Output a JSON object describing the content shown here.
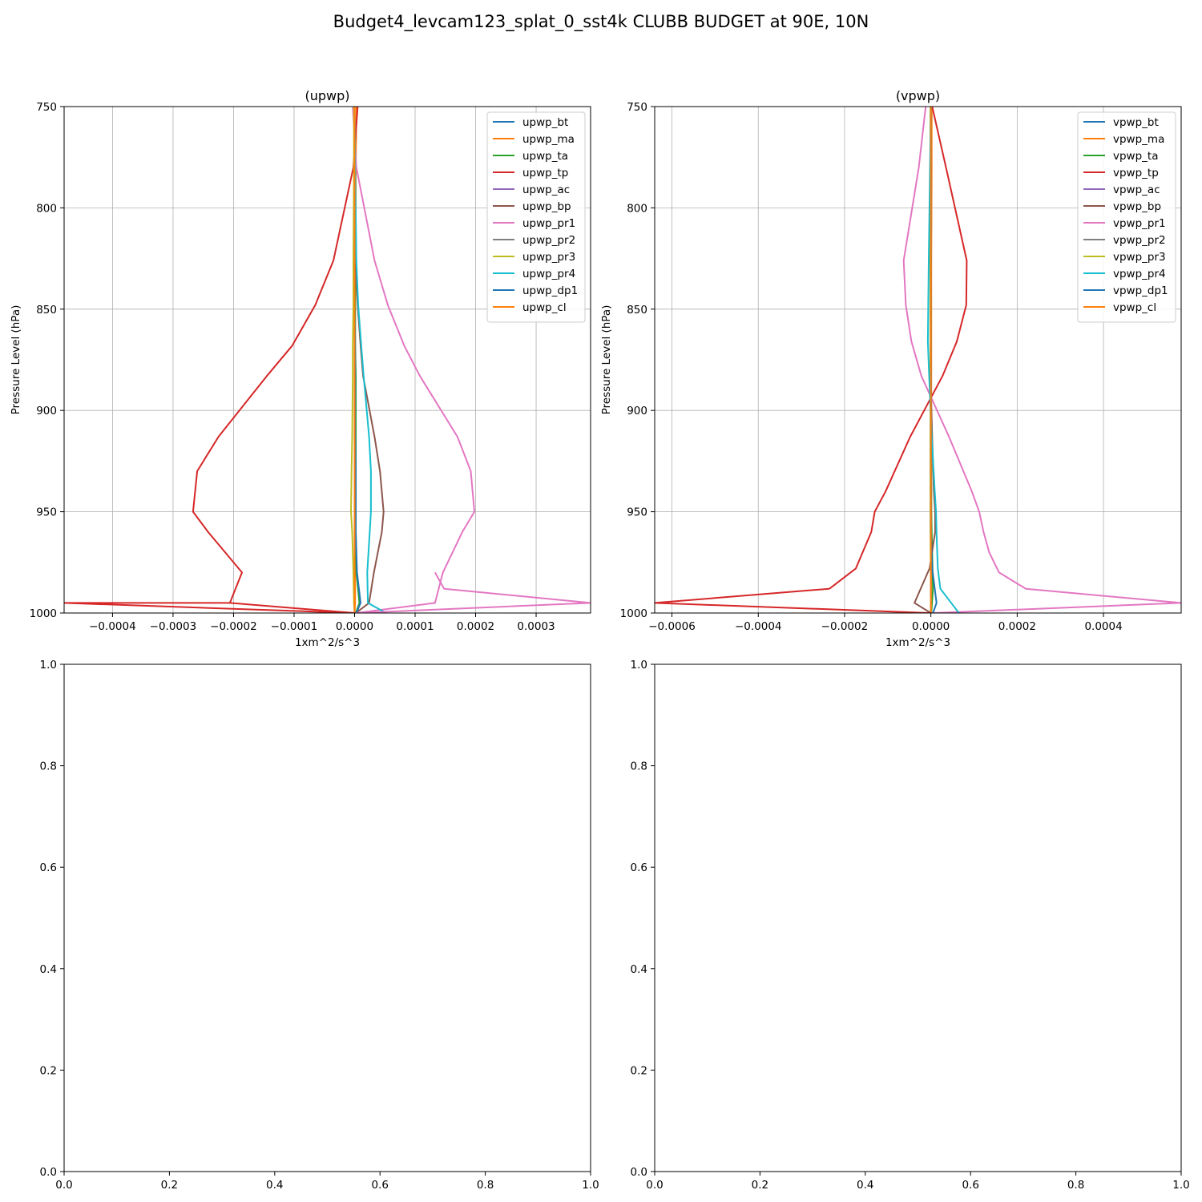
{
  "figure": {
    "suptitle": "Budget4_levcam123_splat_0_sst4k CLUBB BUDGET at 90E, 10N"
  },
  "chart_data": [
    {
      "type": "line",
      "title": "(upwp)",
      "xlabel": "1xm^2/s^3",
      "ylabel": "Pressure Level (hPa)",
      "xlim": [
        -0.00048,
        0.00039
      ],
      "ylim": [
        1000,
        750
      ],
      "y_inverted": true,
      "grid": true,
      "legend_position": "upper right",
      "xticks": [
        -0.0004,
        -0.0003,
        -0.0002,
        -0.0001,
        0.0,
        0.0001,
        0.0002,
        0.0003
      ],
      "xtick_labels": [
        "−0.0004",
        "−0.0003",
        "−0.0002",
        "−0.0001",
        "0.0000",
        "0.0001",
        "0.0002",
        "0.0003"
      ],
      "yticks": [
        750,
        800,
        850,
        900,
        950,
        1000
      ],
      "ytick_labels": [
        "750",
        "800",
        "850",
        "900",
        "950",
        "1000"
      ],
      "series": [
        {
          "name": "upwp_bt",
          "color": "#1f77b4",
          "x": [
            0,
            0,
            0,
            0,
            0,
            0,
            0,
            0,
            0,
            0,
            0,
            0,
            0
          ],
          "y": [
            750,
            780,
            826,
            848,
            868,
            883,
            913,
            930,
            950,
            960,
            980,
            995,
            1000
          ]
        },
        {
          "name": "upwp_ma",
          "color": "#ff7f0e",
          "x": [
            3e-06,
            2e-06,
            2e-06,
            1e-06,
            1e-06,
            1e-06,
            1e-06,
            1e-06,
            1e-06,
            1e-06,
            1e-06,
            1e-06,
            0
          ],
          "y": [
            750,
            780,
            826,
            848,
            868,
            883,
            913,
            930,
            950,
            960,
            980,
            995,
            1000
          ]
        },
        {
          "name": "upwp_ta",
          "color": "#2ca02c",
          "x": [
            0,
            0,
            0,
            1e-06,
            1e-06,
            2e-06,
            2e-06,
            2e-06,
            2e-06,
            2e-06,
            3e-06,
            8e-06,
            2e-06
          ],
          "y": [
            750,
            780,
            826,
            848,
            868,
            883,
            913,
            930,
            950,
            960,
            980,
            995,
            1000
          ]
        },
        {
          "name": "upwp_tp",
          "color": "#d62728",
          "x": [
            5e-06,
            -2e-06,
            -3.5e-05,
            -6.5e-05,
            -0.000103,
            -0.000145,
            -0.000225,
            -0.00026,
            -0.000267,
            -0.000242,
            -0.000186,
            -0.000206,
            0
          ],
          "y": [
            750,
            780,
            826,
            848,
            868,
            883,
            913,
            930,
            950,
            960,
            980,
            995,
            1000
          ]
        },
        {
          "name": "upwp_ac",
          "color": "#9467bd",
          "x": [
            0,
            0,
            0,
            0,
            0,
            0,
            0,
            0,
            0,
            0,
            0,
            0,
            0
          ],
          "y": [
            750,
            780,
            826,
            848,
            868,
            883,
            913,
            930,
            950,
            960,
            980,
            995,
            1000
          ]
        },
        {
          "name": "upwp_bp",
          "color": "#8c564b",
          "x": [
            0,
            0,
            1e-06,
            5e-06,
            1e-05,
            1.4e-05,
            3.3e-05,
            4.2e-05,
            4.8e-05,
            4.5e-05,
            3.2e-05,
            2.4e-05,
            2e-06
          ],
          "y": [
            750,
            780,
            826,
            848,
            868,
            883,
            913,
            930,
            950,
            960,
            980,
            995,
            1000
          ]
        },
        {
          "name": "upwp_pr1",
          "color": "#e377c2",
          "x": [
            -3e-06,
            3e-06,
            3.3e-05,
            5.5e-05,
            8.2e-05,
            0.000108,
            0.00017,
            0.000192,
            0.000198,
            0.000178,
            0.000146,
            0.000133,
            2e-06
          ],
          "y": [
            750,
            780,
            826,
            848,
            868,
            883,
            913,
            930,
            950,
            960,
            980,
            995,
            1000
          ]
        },
        {
          "name": "upwp_pr2",
          "color": "#7f7f7f",
          "x": [
            0,
            0,
            0,
            0,
            0,
            0,
            0,
            0,
            0,
            0,
            0,
            0,
            0
          ],
          "y": [
            750,
            780,
            826,
            848,
            868,
            883,
            913,
            930,
            950,
            960,
            980,
            995,
            1000
          ]
        },
        {
          "name": "upwp_pr3",
          "color": "#bcbd22",
          "x": [
            -1e-06,
            -1e-06,
            -2e-06,
            -2e-06,
            -3e-06,
            -3e-06,
            -4e-06,
            -5e-06,
            -6e-06,
            -4e-06,
            -2e-06,
            -1e-06,
            0
          ],
          "y": [
            750,
            780,
            826,
            848,
            868,
            883,
            913,
            930,
            950,
            960,
            980,
            995,
            1000
          ]
        },
        {
          "name": "upwp_pr4",
          "color": "#17becf",
          "x": [
            0,
            1e-06,
            3e-06,
            6e-06,
            1.1e-05,
            1.5e-05,
            2.4e-05,
            2.7e-05,
            2.7e-05,
            2.5e-05,
            2.1e-05,
            2.2e-05,
            5.2e-05
          ],
          "y": [
            750,
            780,
            826,
            848,
            868,
            883,
            913,
            930,
            950,
            960,
            980,
            995,
            1000
          ]
        },
        {
          "name": "upwp_dp1",
          "color": "#1f77b4",
          "x": [
            0,
            0,
            0,
            0,
            1e-06,
            1e-06,
            1e-06,
            2e-06,
            2e-06,
            2e-06,
            4e-06,
            1e-05,
            3e-06
          ],
          "y": [
            750,
            780,
            826,
            848,
            868,
            883,
            913,
            930,
            950,
            960,
            980,
            995,
            1000
          ]
        },
        {
          "name": "upwp_cl",
          "color": "#ff7f0e",
          "x": [
            0,
            0,
            0,
            0,
            0,
            0,
            0,
            0,
            0,
            0,
            0,
            0,
            0
          ],
          "y": [
            750,
            780,
            826,
            848,
            868,
            883,
            913,
            930,
            950,
            960,
            980,
            995,
            1000
          ]
        },
        {
          "name": "",
          "color": "#d62728",
          "x": [
            -0.000206,
            -0.00048,
            0
          ],
          "y": [
            995,
            995,
            1000
          ]
        },
        {
          "name": "",
          "color": "#e377c2",
          "x": [
            0.000133,
            0.000148,
            0.00039,
            2e-06
          ],
          "y": [
            980,
            988,
            995,
            1000
          ]
        }
      ]
    },
    {
      "type": "line",
      "title": "(vpwp)",
      "xlabel": "1xm^2/s^3",
      "ylabel": "Pressure Level (hPa)",
      "xlim": [
        -0.00064,
        0.00058
      ],
      "ylim": [
        1000,
        750
      ],
      "y_inverted": true,
      "grid": true,
      "legend_position": "upper right",
      "xticks": [
        -0.0006,
        -0.0004,
        -0.0002,
        0.0,
        0.0002,
        0.0004
      ],
      "xtick_labels": [
        "−0.0006",
        "−0.0004",
        "−0.0002",
        "0.0000",
        "0.0002",
        "0.0004"
      ],
      "yticks": [
        750,
        800,
        850,
        900,
        950,
        1000
      ],
      "ytick_labels": [
        "750",
        "800",
        "850",
        "900",
        "950",
        "1000"
      ],
      "series": [
        {
          "name": "vpwp_bt",
          "color": "#1f77b4",
          "x": [
            0,
            0,
            0,
            0,
            0,
            0,
            0,
            0,
            0,
            0,
            0,
            0
          ],
          "y": [
            750,
            780,
            826,
            848,
            866,
            883,
            913,
            940,
            950,
            960,
            988,
            1000
          ]
        },
        {
          "name": "vpwp_ma",
          "color": "#ff7f0e",
          "x": [
            2e-06,
            2e-06,
            1e-06,
            1e-06,
            1e-06,
            1e-06,
            1e-06,
            1e-06,
            1e-06,
            1e-06,
            1e-06,
            0
          ],
          "y": [
            750,
            780,
            826,
            848,
            866,
            883,
            913,
            940,
            950,
            960,
            988,
            1000
          ]
        },
        {
          "name": "vpwp_ta",
          "color": "#2ca02c",
          "x": [
            0,
            0,
            0,
            0,
            0,
            0,
            1e-06,
            1e-06,
            1e-06,
            2e-06,
            5e-06,
            1e-06
          ],
          "y": [
            750,
            780,
            826,
            848,
            866,
            883,
            913,
            940,
            950,
            960,
            988,
            1000
          ]
        },
        {
          "name": "vpwp_tp",
          "color": "#d62728",
          "x": [
            3e-06,
            3.5e-05,
            8.3e-05,
            8.2e-05,
            6e-05,
            2.7e-05,
            -4.8e-05,
            -0.000105,
            -0.00013,
            -0.000138,
            -0.000174,
            -0.000235
          ],
          "y": [
            750,
            780,
            826,
            848,
            866,
            883,
            913,
            940,
            950,
            960,
            978,
            988
          ]
        },
        {
          "name": "vpwp_ac",
          "color": "#9467bd",
          "x": [
            0,
            0,
            0,
            0,
            0,
            0,
            0,
            0,
            0,
            0,
            0,
            0
          ],
          "y": [
            750,
            780,
            826,
            848,
            866,
            883,
            913,
            940,
            950,
            960,
            988,
            1000
          ]
        },
        {
          "name": "vpwp_bp",
          "color": "#8c564b",
          "x": [
            0,
            0,
            -1e-06,
            -1e-06,
            -1e-06,
            -1e-06,
            3e-06,
            7e-06,
            1e-05,
            1e-05,
            -3e-06,
            -3.8e-05,
            0
          ],
          "y": [
            750,
            780,
            826,
            848,
            866,
            883,
            913,
            940,
            950,
            960,
            978,
            995,
            1000
          ]
        },
        {
          "name": "vpwp_pr1",
          "color": "#e377c2",
          "x": [
            -1.2e-05,
            -2.8e-05,
            -6.3e-05,
            -5.8e-05,
            -4.5e-05,
            -2.2e-05,
            4.2e-05,
            9.5e-05,
            0.000112,
            0.000122,
            0.000135,
            0.000158,
            0.00022,
            0.00058,
            5e-06
          ],
          "y": [
            750,
            780,
            826,
            848,
            866,
            883,
            913,
            940,
            950,
            960,
            970,
            980,
            988,
            995,
            1000
          ]
        },
        {
          "name": "vpwp_pr2",
          "color": "#7f7f7f",
          "x": [
            0,
            0,
            0,
            0,
            0,
            0,
            0,
            0,
            0,
            0,
            0,
            0
          ],
          "y": [
            750,
            780,
            826,
            848,
            866,
            883,
            913,
            940,
            950,
            960,
            988,
            1000
          ]
        },
        {
          "name": "vpwp_pr3",
          "color": "#bcbd22",
          "x": [
            -1e-06,
            -1e-06,
            -1e-06,
            -1e-06,
            -1e-06,
            -1e-06,
            -1e-06,
            -1e-06,
            -1e-06,
            -1e-06,
            0,
            0
          ],
          "y": [
            750,
            780,
            826,
            848,
            866,
            883,
            913,
            940,
            950,
            960,
            988,
            1000
          ]
        },
        {
          "name": "vpwp_pr4",
          "color": "#17becf",
          "x": [
            0,
            -2e-06,
            -5e-06,
            -6e-06,
            -7e-06,
            -4e-06,
            2e-06,
            9e-06,
            1.2e-05,
            1.3e-05,
            1.6e-05,
            2.2e-05,
            6.5e-05
          ],
          "y": [
            750,
            780,
            826,
            848,
            866,
            883,
            913,
            940,
            950,
            960,
            978,
            988,
            1000
          ]
        },
        {
          "name": "vpwp_dp1",
          "color": "#1f77b4",
          "x": [
            0,
            0,
            0,
            0,
            0,
            0,
            0,
            0,
            0,
            0,
            3e-06,
            1.3e-05,
            5e-06
          ],
          "y": [
            750,
            780,
            826,
            848,
            866,
            883,
            913,
            940,
            950,
            960,
            978,
            995,
            1000
          ]
        },
        {
          "name": "vpwp_cl",
          "color": "#ff7f0e",
          "x": [
            0,
            0,
            0,
            0,
            0,
            0,
            0,
            0,
            0,
            0,
            0,
            0
          ],
          "y": [
            750,
            780,
            826,
            848,
            866,
            883,
            913,
            940,
            950,
            960,
            988,
            1000
          ]
        },
        {
          "name": "",
          "color": "#d62728",
          "x": [
            -0.000235,
            -0.00064,
            0
          ],
          "y": [
            988,
            995,
            1000
          ]
        }
      ]
    },
    {
      "type": "line",
      "title": "",
      "xlim": [
        0,
        1
      ],
      "ylim": [
        0,
        1
      ],
      "xticks": [
        0.0,
        0.2,
        0.4,
        0.6,
        0.8,
        1.0
      ],
      "xtick_labels": [
        "0.0",
        "0.2",
        "0.4",
        "0.6",
        "0.8",
        "1.0"
      ],
      "yticks": [
        0.0,
        0.2,
        0.4,
        0.6,
        0.8,
        1.0
      ],
      "ytick_labels": [
        "0.0",
        "0.2",
        "0.4",
        "0.6",
        "0.8",
        "1.0"
      ],
      "grid": false,
      "series": []
    },
    {
      "type": "line",
      "title": "",
      "xlim": [
        0,
        1
      ],
      "ylim": [
        0,
        1
      ],
      "xticks": [
        0.0,
        0.2,
        0.4,
        0.6,
        0.8,
        1.0
      ],
      "xtick_labels": [
        "0.0",
        "0.2",
        "0.4",
        "0.6",
        "0.8",
        "1.0"
      ],
      "yticks": [
        0.0,
        0.2,
        0.4,
        0.6,
        0.8,
        1.0
      ],
      "ytick_labels": [
        "0.0",
        "0.2",
        "0.4",
        "0.6",
        "0.8",
        "1.0"
      ],
      "grid": false,
      "series": []
    }
  ]
}
